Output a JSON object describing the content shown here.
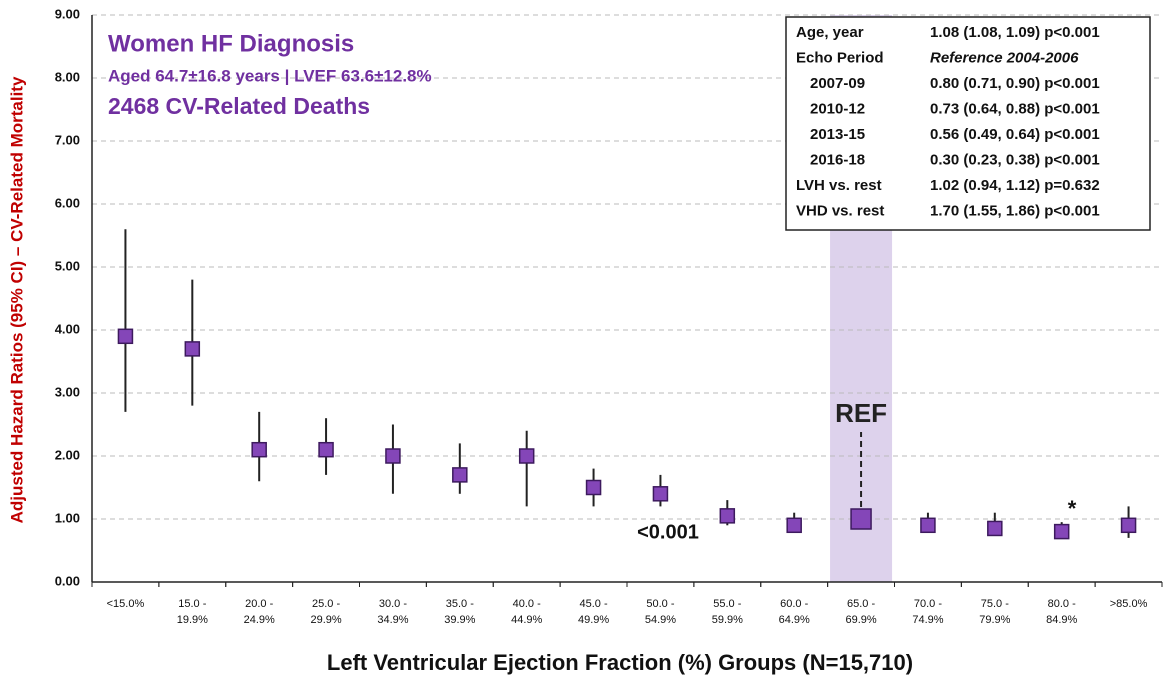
{
  "chart_data": {
    "type": "forest",
    "annotations": {
      "title": "Women HF Diagnosis",
      "subtitle": "Aged 64.7±16.8 years | LVEF 63.6±12.8%",
      "deaths": "2468 CV-Related Deaths",
      "pvalue": "<0.001",
      "star": "*"
    },
    "y_label": "Adjusted Hazard Ratios (95% CI) – CV-Related Mortality",
    "x_label": "Left Ventricular Ejection Fraction (%) Groups (N=15,710)",
    "categories": [
      "<15.0%",
      "15.0 -\n19.9%",
      "20.0 -\n24.9%",
      "25.0 -\n29.9%",
      "30.0 -\n34.9%",
      "35.0 -\n39.9%",
      "40.0 -\n44.9%",
      "45.0 -\n49.9%",
      "50.0 -\n54.9%",
      "55.0 -\n59.9%",
      "60.0 -\n64.9%",
      "65.0 -\n69.9%",
      "70.0 -\n74.9%",
      "75.0 -\n79.9%",
      "80.0 -\n84.9%",
      ">85.0%"
    ],
    "values": [
      3.9,
      3.7,
      2.1,
      2.1,
      2.0,
      1.7,
      2.0,
      1.5,
      1.4,
      1.05,
      0.9,
      1.0,
      0.9,
      0.85,
      0.8,
      0.9
    ],
    "ci_low": [
      2.7,
      2.8,
      1.6,
      1.7,
      1.4,
      1.4,
      1.2,
      1.2,
      1.2,
      0.9,
      0.8,
      null,
      0.8,
      0.75,
      0.7,
      0.7
    ],
    "ci_high": [
      5.6,
      4.8,
      2.7,
      2.6,
      2.5,
      2.2,
      2.4,
      1.8,
      1.7,
      1.3,
      1.1,
      null,
      1.1,
      1.1,
      0.95,
      1.2
    ],
    "color": "#8446b8",
    "reference": {
      "category_index": 11,
      "label": "REF",
      "color": "#ddd2ec"
    },
    "ylim": [
      0,
      9
    ],
    "yticks": [
      {
        "value": 0,
        "label": "0.00"
      },
      {
        "value": 1,
        "label": "1.00"
      },
      {
        "value": 2,
        "label": "2.00"
      },
      {
        "value": 3,
        "label": "3.00"
      },
      {
        "value": 4,
        "label": "4.00"
      },
      {
        "value": 5,
        "label": "5.00"
      },
      {
        "value": 6,
        "label": "6.00"
      },
      {
        "value": 7,
        "label": "7.00"
      },
      {
        "value": 8,
        "label": "8.00"
      },
      {
        "value": 9,
        "label": "9.00"
      }
    ],
    "grid": true,
    "table": [
      [
        "Age, year",
        "1.08 (1.08, 1.09) p<0.001"
      ],
      [
        "Echo Period",
        "Reference 2004-2006"
      ],
      [
        "2007-09",
        "0.80 (0.71, 0.90) p<0.001"
      ],
      [
        "2010-12",
        "0.73 (0.64, 0.88) p<0.001"
      ],
      [
        "2013-15",
        "0.56 (0.49, 0.64) p<0.001"
      ],
      [
        "2016-18",
        "0.30 (0.23, 0.38) p<0.001"
      ],
      [
        "LVH vs. rest",
        "1.02 (0.94, 1.12) p=0.632"
      ],
      [
        "VHD vs. rest",
        "1.70 (1.55, 1.86) p<0.001"
      ]
    ]
  }
}
